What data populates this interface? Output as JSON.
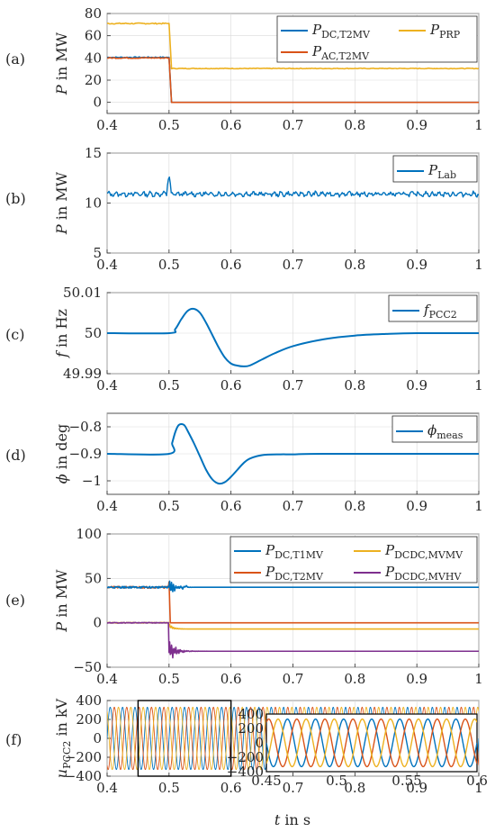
{
  "colors": {
    "blue": "#0072BD",
    "orange": "#D95319",
    "yellow": "#EDB120",
    "purple": "#7E2F8E"
  },
  "xlabel": {
    "main": "t",
    "rest": " in s"
  },
  "chart_data": [
    {
      "panel": "(a)",
      "type": "line",
      "ylabel": {
        "main": "P",
        "rest": " in MW"
      },
      "xlim": [
        0.4,
        1.0
      ],
      "ylim": [
        -10,
        80
      ],
      "xticks": [
        "0.4",
        "0.5",
        "0.6",
        "0.7",
        "0.8",
        "0.9",
        "1"
      ],
      "yticks": [
        "0",
        "20",
        "40",
        "60",
        "80"
      ],
      "grid": true,
      "legend": "top-right, 2 columns",
      "series": [
        {
          "name": "P",
          "sub": "DC,T2MV",
          "color": "blue",
          "pre": 40.5,
          "post": 0,
          "t_step": 0.5
        },
        {
          "name": "P",
          "sub": "PRP",
          "color": "yellow",
          "pre": 71,
          "post": 30.5,
          "t_step": 0.5
        },
        {
          "name": "P",
          "sub": "AC,T2MV",
          "color": "orange",
          "pre": 40,
          "post": 0,
          "t_step": 0.5
        }
      ]
    },
    {
      "panel": "(b)",
      "type": "line",
      "ylabel": {
        "main": "P",
        "rest": " in MW"
      },
      "xlim": [
        0.4,
        1.0
      ],
      "ylim": [
        5,
        15
      ],
      "xticks": [
        "0.4",
        "0.5",
        "0.6",
        "0.7",
        "0.8",
        "0.9",
        "1"
      ],
      "yticks": [
        "5",
        "10",
        "15"
      ],
      "grid": true,
      "legend": "top-right",
      "series": [
        {
          "name": "P",
          "sub": "Lab",
          "color": "blue",
          "mean": 10.9,
          "ripple": 0.25,
          "spike_t": 0.5,
          "spike_peak": 12.8
        }
      ]
    },
    {
      "panel": "(c)",
      "type": "line",
      "ylabel": {
        "main": "f",
        "rest": " in Hz"
      },
      "xlim": [
        0.4,
        1.0
      ],
      "ylim": [
        49.99,
        50.01
      ],
      "xticks": [
        "0.4",
        "0.5",
        "0.6",
        "0.7",
        "0.8",
        "0.9",
        "1"
      ],
      "yticks": [
        "49.99",
        "50",
        "50.01"
      ],
      "grid": true,
      "legend": "top-right",
      "series": [
        {
          "name": "f",
          "sub": "PCC2",
          "color": "blue",
          "points": [
            [
              0.4,
              50
            ],
            [
              0.5,
              50
            ],
            [
              0.51,
              50.001
            ],
            [
              0.52,
              50.0035
            ],
            [
              0.53,
              50.0055
            ],
            [
              0.54,
              50.006
            ],
            [
              0.55,
              50.005
            ],
            [
              0.56,
              50.0025
            ],
            [
              0.57,
              49.9995
            ],
            [
              0.58,
              49.9965
            ],
            [
              0.59,
              49.994
            ],
            [
              0.6,
              49.9925
            ],
            [
              0.61,
              49.992
            ],
            [
              0.62,
              49.9918
            ],
            [
              0.63,
              49.992
            ],
            [
              0.65,
              49.9935
            ],
            [
              0.67,
              49.995
            ],
            [
              0.7,
              49.9968
            ],
            [
              0.75,
              49.9985
            ],
            [
              0.8,
              49.9994
            ],
            [
              0.85,
              49.9998
            ],
            [
              0.9,
              50
            ],
            [
              1.0,
              50
            ]
          ]
        }
      ]
    },
    {
      "panel": "(d)",
      "type": "line",
      "ylabel": {
        "main": "ϕ",
        "rest": " in deg"
      },
      "xlim": [
        0.4,
        1.0
      ],
      "ylim": [
        -1.05,
        -0.75
      ],
      "xticks": [
        "0.4",
        "0.5",
        "0.6",
        "0.7",
        "0.8",
        "0.9",
        "1"
      ],
      "yticks": [
        "−0.8",
        "−0.9",
        "−1"
      ],
      "ytick_values": [
        -0.8,
        -0.9,
        -1.0
      ],
      "grid": true,
      "legend": "top-right",
      "series": [
        {
          "name": "ϕ",
          "sub": "meas",
          "color": "blue",
          "points": [
            [
              0.4,
              -0.9
            ],
            [
              0.5,
              -0.9
            ],
            [
              0.505,
              -0.86
            ],
            [
              0.51,
              -0.82
            ],
            [
              0.515,
              -0.795
            ],
            [
              0.52,
              -0.79
            ],
            [
              0.525,
              -0.795
            ],
            [
              0.53,
              -0.815
            ],
            [
              0.54,
              -0.86
            ],
            [
              0.55,
              -0.91
            ],
            [
              0.56,
              -0.96
            ],
            [
              0.57,
              -0.995
            ],
            [
              0.58,
              -1.01
            ],
            [
              0.59,
              -1.005
            ],
            [
              0.6,
              -0.985
            ],
            [
              0.61,
              -0.96
            ],
            [
              0.62,
              -0.935
            ],
            [
              0.63,
              -0.918
            ],
            [
              0.65,
              -0.905
            ],
            [
              0.68,
              -0.902
            ],
            [
              0.7,
              -0.902
            ],
            [
              0.75,
              -0.9
            ],
            [
              1.0,
              -0.9
            ]
          ]
        }
      ]
    },
    {
      "panel": "(e)",
      "type": "line",
      "ylabel": {
        "main": "P",
        "rest": " in MW"
      },
      "xlim": [
        0.4,
        1.0
      ],
      "ylim": [
        -50,
        100
      ],
      "xticks": [
        "0.4",
        "0.5",
        "0.6",
        "0.7",
        "0.8",
        "0.9",
        "1"
      ],
      "yticks": [
        "−50",
        "0",
        "50",
        "100"
      ],
      "ytick_values": [
        -50,
        0,
        50,
        100
      ],
      "grid": true,
      "legend": "top-right, 2 columns",
      "series": [
        {
          "name": "P",
          "sub": "DC,T1MV",
          "color": "blue",
          "pre": 40,
          "post": 40
        },
        {
          "name": "P",
          "sub": "DCDC,MVMV",
          "color": "yellow",
          "pre": 0,
          "post": -7
        },
        {
          "name": "P",
          "sub": "DC,T2MV",
          "color": "orange",
          "pre": 40,
          "post": 0
        },
        {
          "name": "P",
          "sub": "DCDC,MVHV",
          "color": "purple",
          "pre": 0,
          "post": -32
        }
      ]
    },
    {
      "panel": "(f)",
      "type": "line",
      "ylabel": {
        "main": "u",
        "sub": "PCC2",
        "rest": " in kV"
      },
      "xlim": [
        0.4,
        1.0
      ],
      "ylim": [
        -400,
        400
      ],
      "xticks": [
        "0.4",
        "0.5",
        "0.6",
        "0.7",
        "0.8",
        "0.9",
        "1"
      ],
      "yticks": [
        "−400",
        "−200",
        "0",
        "200",
        "400"
      ],
      "ytick_values": [
        -400,
        -200,
        0,
        200,
        400
      ],
      "grid": true,
      "amplitude": 330,
      "frequency_hz": 50,
      "phase_colors": [
        "blue",
        "orange",
        "yellow"
      ],
      "inset": {
        "xlim": [
          0.45,
          0.6
        ],
        "ylim": [
          -400,
          400
        ],
        "xticks": [
          "0.45",
          "0.5",
          "0.55",
          "0.6"
        ],
        "yticks": [
          "400",
          "200",
          "0",
          "−200",
          "−400"
        ],
        "zoom_box_x": [
          0.45,
          0.6
        ]
      }
    }
  ]
}
